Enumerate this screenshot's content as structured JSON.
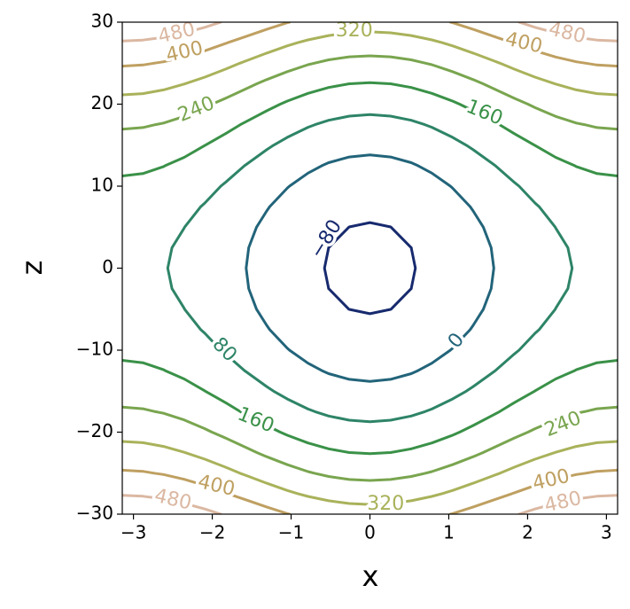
{
  "chart_data": {
    "type": "contour",
    "xlabel": "x",
    "ylabel": "z",
    "xlim": [
      -3.1416,
      3.1416
    ],
    "ylim": [
      -30,
      30
    ],
    "xticks": [
      {
        "value": -3,
        "label": "−3"
      },
      {
        "value": -2,
        "label": "−2"
      },
      {
        "value": -1,
        "label": "−1"
      },
      0,
      1,
      2,
      3
    ],
    "yticks": [
      {
        "value": -30,
        "label": "−30"
      },
      {
        "value": -20,
        "label": "−20"
      },
      {
        "value": -10,
        "label": "−10"
      },
      0,
      10,
      20,
      30
    ],
    "levels": [
      {
        "value": -80,
        "label": "−80"
      },
      0,
      80,
      160,
      240,
      320,
      400,
      480
    ],
    "colors": [
      "#172a6e",
      "#22647a",
      "#2e8468",
      "#3a9148",
      "#79a54f",
      "#a9b25a",
      "#bfa061",
      "#dbb8a2"
    ],
    "x": [
      -3.1416,
      -2.8798,
      -2.618,
      -2.3562,
      -2.0944,
      -1.8326,
      -1.5708,
      -1.309,
      -1.0472,
      -0.7854,
      -0.5236,
      -0.2618,
      0,
      0.2618,
      0.5236,
      0.7854,
      1.0472,
      1.309,
      1.5708,
      1.8326,
      2.0944,
      2.3562,
      2.618,
      2.8798,
      3.1416
    ],
    "y": [
      -30,
      -27.5,
      -25,
      -22.5,
      -20,
      -17.5,
      -15,
      -12.5,
      -10,
      -7.5,
      -5,
      -2.5,
      0,
      2.5,
      5,
      7.5,
      10,
      12.5,
      15,
      17.5,
      20,
      22.5,
      25,
      27.5,
      30
    ],
    "z": [
      [
        546,
        542.7,
        533.1,
        517.9,
        498,
        474.8,
        450,
        425.2,
        402,
        382.1,
        366.9,
        357.3,
        354,
        357.3,
        366.9,
        382.1,
        402,
        425.2,
        450,
        474.8,
        498,
        517.9,
        533.1,
        542.7,
        546
      ],
      [
        474.1,
        470.8,
        461.2,
        446,
        426.1,
        402.9,
        378.1,
        353.3,
        330.1,
        310.2,
        295,
        285.4,
        282.1,
        285.4,
        295,
        310.2,
        330.1,
        353.3,
        378.1,
        402.9,
        426.1,
        446,
        461.2,
        470.8,
        474.1
      ],
      [
        408.5,
        405.2,
        395.6,
        380.4,
        360.5,
        337.3,
        312.5,
        287.7,
        264.5,
        244.6,
        229.4,
        219.8,
        216.5,
        219.8,
        229.4,
        244.6,
        264.5,
        287.7,
        312.5,
        337.3,
        360.5,
        380.4,
        395.6,
        405.2,
        408.5
      ],
      [
        349.1,
        345.8,
        336.2,
        321,
        301.1,
        277.9,
        253.1,
        228.3,
        205.1,
        185.2,
        170,
        160.4,
        157.1,
        160.4,
        170,
        185.2,
        205.1,
        228.3,
        253.1,
        277.9,
        301.1,
        321,
        336.2,
        345.8,
        349.1
      ],
      [
        296,
        292.7,
        283.1,
        267.9,
        248,
        224.8,
        200,
        175.2,
        152,
        132.1,
        116.9,
        107.3,
        104,
        107.3,
        116.9,
        132.1,
        152,
        175.2,
        200,
        224.8,
        248,
        267.9,
        283.1,
        292.7,
        296
      ],
      [
        249.1,
        245.8,
        236.2,
        221,
        201.1,
        177.9,
        153.1,
        128.3,
        105.1,
        85.2,
        70,
        60.4,
        57.1,
        60.4,
        70,
        85.2,
        105.1,
        128.3,
        153.1,
        177.9,
        201.1,
        221,
        236.2,
        245.8,
        249.1
      ],
      [
        208.5,
        205.2,
        195.6,
        180.4,
        160.5,
        137.3,
        112.5,
        87.7,
        64.5,
        44.6,
        29.4,
        19.8,
        16.5,
        19.8,
        29.4,
        44.6,
        64.5,
        87.7,
        112.5,
        137.3,
        160.5,
        180.4,
        195.6,
        205.2,
        208.5
      ],
      [
        174.1,
        170.8,
        161.2,
        146,
        126.1,
        102.9,
        78.1,
        53.3,
        30.1,
        10.2,
        -5,
        -14.6,
        -17.9,
        -14.6,
        -5,
        10.2,
        30.1,
        53.3,
        78.1,
        102.9,
        126.1,
        146,
        161.2,
        170.8,
        174.1
      ],
      [
        146,
        142.7,
        133.1,
        117.9,
        98,
        74.8,
        50,
        25.2,
        2,
        -17.9,
        -33.1,
        -42.7,
        -46,
        -42.7,
        -33.1,
        -17.9,
        2,
        25.2,
        50,
        74.8,
        98,
        117.9,
        133.1,
        142.7,
        146
      ],
      [
        124.1,
        120.8,
        111.2,
        96,
        76.1,
        52.9,
        28.1,
        3.3,
        -19.9,
        -39.8,
        -55,
        -64.6,
        -67.9,
        -64.6,
        -55,
        -39.8,
        -19.9,
        3.3,
        28.1,
        52.9,
        76.1,
        96,
        111.2,
        120.8,
        124.1
      ],
      [
        108.5,
        105.2,
        95.6,
        80.4,
        60.5,
        37.3,
        12.5,
        -12.3,
        -35.5,
        -55.4,
        -70.6,
        -80.2,
        -83.5,
        -80.2,
        -70.6,
        -55.4,
        -35.5,
        -12.3,
        12.5,
        37.3,
        60.5,
        80.4,
        95.6,
        105.2,
        108.5
      ],
      [
        99.1,
        95.8,
        86.2,
        71,
        51.1,
        27.9,
        3.1,
        -21.7,
        -44.9,
        -64.8,
        -80,
        -89.6,
        -92.9,
        -89.6,
        -80,
        -64.8,
        -44.9,
        -21.7,
        3.1,
        27.9,
        51.1,
        71,
        86.2,
        95.8,
        99.1
      ],
      [
        96,
        92.7,
        83.1,
        67.9,
        48,
        24.8,
        0,
        -24.8,
        -48,
        -67.9,
        -83.1,
        -92.7,
        -96,
        -92.7,
        -83.1,
        -67.9,
        -48,
        -24.8,
        0,
        24.8,
        48,
        67.9,
        83.1,
        92.7,
        96
      ],
      [
        99.1,
        95.8,
        86.2,
        71,
        51.1,
        27.9,
        3.1,
        -21.7,
        -44.9,
        -64.8,
        -80,
        -89.6,
        -92.9,
        -89.6,
        -80,
        -64.8,
        -44.9,
        -21.7,
        3.1,
        27.9,
        51.1,
        71,
        86.2,
        95.8,
        99.1
      ],
      [
        108.5,
        105.2,
        95.6,
        80.4,
        60.5,
        37.3,
        12.5,
        -12.3,
        -35.5,
        -55.4,
        -70.6,
        -80.2,
        -83.5,
        -80.2,
        -70.6,
        -55.4,
        -35.5,
        -12.3,
        12.5,
        37.3,
        60.5,
        80.4,
        95.6,
        105.2,
        108.5
      ],
      [
        124.1,
        120.8,
        111.2,
        96,
        76.1,
        52.9,
        28.1,
        3.3,
        -19.9,
        -39.8,
        -55,
        -64.6,
        -67.9,
        -64.6,
        -55,
        -39.8,
        -19.9,
        3.3,
        28.1,
        52.9,
        76.1,
        96,
        111.2,
        120.8,
        124.1
      ],
      [
        146,
        142.7,
        133.1,
        117.9,
        98,
        74.8,
        50,
        25.2,
        2,
        -17.9,
        -33.1,
        -42.7,
        -46,
        -42.7,
        -33.1,
        -17.9,
        2,
        25.2,
        50,
        74.8,
        98,
        117.9,
        133.1,
        142.7,
        146
      ],
      [
        174.1,
        170.8,
        161.2,
        146,
        126.1,
        102.9,
        78.1,
        53.3,
        30.1,
        10.2,
        -5,
        -14.6,
        -17.9,
        -14.6,
        -5,
        10.2,
        30.1,
        53.3,
        78.1,
        102.9,
        126.1,
        146,
        161.2,
        170.8,
        174.1
      ],
      [
        208.5,
        205.2,
        195.6,
        180.4,
        160.5,
        137.3,
        112.5,
        87.7,
        64.5,
        44.6,
        29.4,
        19.8,
        16.5,
        19.8,
        29.4,
        44.6,
        64.5,
        87.7,
        112.5,
        137.3,
        160.5,
        180.4,
        195.6,
        205.2,
        208.5
      ],
      [
        249.1,
        245.8,
        236.2,
        221,
        201.1,
        177.9,
        153.1,
        128.3,
        105.1,
        85.2,
        70,
        60.4,
        57.1,
        60.4,
        70,
        85.2,
        105.1,
        128.3,
        153.1,
        177.9,
        201.1,
        221,
        236.2,
        245.8,
        249.1
      ],
      [
        296,
        292.7,
        283.1,
        267.9,
        248,
        224.8,
        200,
        175.2,
        152,
        132.1,
        116.9,
        107.3,
        104,
        107.3,
        116.9,
        132.1,
        152,
        175.2,
        200,
        224.8,
        248,
        267.9,
        283.1,
        292.7,
        296
      ],
      [
        349.1,
        345.8,
        336.2,
        321,
        301.1,
        277.9,
        253.1,
        228.3,
        205.1,
        185.2,
        170,
        160.4,
        157.1,
        160.4,
        170,
        185.2,
        205.1,
        228.3,
        253.1,
        277.9,
        301.1,
        321,
        336.2,
        345.8,
        349.1
      ],
      [
        408.5,
        405.2,
        395.6,
        380.4,
        360.5,
        337.3,
        312.5,
        287.7,
        264.5,
        244.6,
        229.4,
        219.8,
        216.5,
        219.8,
        229.4,
        244.6,
        264.5,
        287.7,
        312.5,
        337.3,
        360.5,
        380.4,
        395.6,
        405.2,
        408.5
      ],
      [
        474.1,
        470.8,
        461.2,
        446,
        426.1,
        402.9,
        378.1,
        353.3,
        330.1,
        310.2,
        295,
        285.4,
        282.1,
        285.4,
        295,
        310.2,
        330.1,
        353.3,
        378.1,
        402.9,
        426.1,
        446,
        461.2,
        470.8,
        474.1
      ],
      [
        546,
        542.7,
        533.1,
        517.9,
        498,
        474.8,
        450,
        425.2,
        402,
        382.1,
        366.9,
        357.3,
        354,
        357.3,
        366.9,
        382.1,
        402,
        425.2,
        450,
        474.8,
        498,
        517.9,
        533.1,
        542.7,
        546
      ]
    ]
  }
}
